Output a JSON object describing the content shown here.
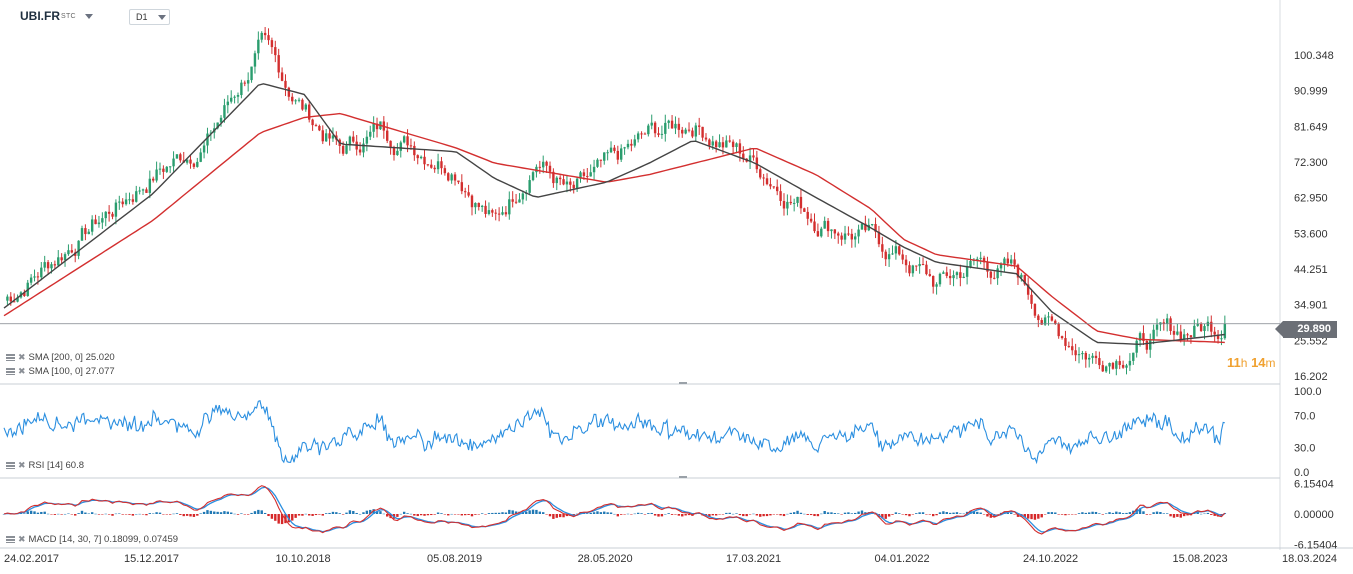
{
  "header": {
    "symbol": "UBI.FR",
    "exchange_tag": "STC",
    "timeframe": "D1"
  },
  "colors": {
    "candle_up": "#2a9d6e",
    "candle_down": "#d32f2f",
    "sma200": "#d32f2f",
    "sma100": "#444444",
    "rsi": "#2b8fe0",
    "macd_line": "#d32f2f",
    "macd_signal": "#2b8fe0",
    "hist_pos": "#1f78b4",
    "hist_neg": "#d62728"
  },
  "indicators": {
    "sma200_label": "SMA [200, 0] 25.020",
    "sma100_label": "SMA [100, 0] 27.077",
    "rsi_label": "RSI [14] 60.8",
    "macd_label": "MACD [14, 30, 7] 0.18099, 0.07459"
  },
  "last_price": "29.890",
  "countdown": {
    "hours": "11",
    "h_unit": "h",
    "minutes": "14",
    "m_unit": "m"
  },
  "chart_data": {
    "type": "candlestick",
    "price_axis_ticks": [
      "100.348",
      "90.999",
      "81.649",
      "72.300",
      "62.950",
      "53.600",
      "44.251",
      "34.901",
      "25.552",
      "16.202"
    ],
    "rsi_axis_ticks": [
      "100.0",
      "70.0",
      "30.0",
      "0.0"
    ],
    "macd_axis_ticks": [
      "6.15404",
      "0.00000",
      "-6.15404"
    ],
    "x_ticks": [
      "24.02.2017",
      "15.12.2017",
      "10.10.2018",
      "05.08.2019",
      "28.05.2020",
      "17.03.2021",
      "04.01.2022",
      "24.10.2022",
      "15.08.2023",
      "18.03.2024"
    ],
    "price_path": [
      [
        "24.02.2017",
        36
      ],
      [
        "15.12.2017",
        69
      ],
      [
        "01.04.2018",
        78
      ],
      [
        "15.07.2018",
        102
      ],
      [
        "10.10.2018",
        86
      ],
      [
        "20.12.2018",
        75
      ],
      [
        "10.03.2019",
        81
      ],
      [
        "05.08.2019",
        72
      ],
      [
        "20.10.2019",
        56
      ],
      [
        "10.01.2020",
        74
      ],
      [
        "20.03.2020",
        63
      ],
      [
        "28.05.2020",
        70
      ],
      [
        "20.08.2020",
        79
      ],
      [
        "15.11.2020",
        83
      ],
      [
        "17.03.2021",
        72
      ],
      [
        "15.07.2021",
        58
      ],
      [
        "01.11.2021",
        52
      ],
      [
        "04.01.2022",
        47
      ],
      [
        "10.03.2022",
        40
      ],
      [
        "01.06.2022",
        46
      ],
      [
        "15.08.2022",
        43
      ],
      [
        "24.10.2022",
        29
      ],
      [
        "20.01.2023",
        21
      ],
      [
        "15.04.2023",
        25
      ],
      [
        "15.08.2023",
        29
      ],
      [
        "30.09.2023",
        29.89
      ]
    ],
    "sma100_path": [
      [
        "24.02.2017",
        34
      ],
      [
        "15.12.2017",
        64
      ],
      [
        "15.07.2018",
        93
      ],
      [
        "10.10.2018",
        90
      ],
      [
        "20.12.2018",
        77
      ],
      [
        "05.08.2019",
        75
      ],
      [
        "20.10.2019",
        68
      ],
      [
        "10.01.2020",
        63
      ],
      [
        "28.05.2020",
        67
      ],
      [
        "20.08.2020",
        72
      ],
      [
        "15.11.2020",
        78
      ],
      [
        "17.03.2021",
        72
      ],
      [
        "15.07.2021",
        63
      ],
      [
        "01.11.2021",
        55
      ],
      [
        "04.01.2022",
        50
      ],
      [
        "10.03.2022",
        46
      ],
      [
        "15.08.2022",
        43
      ],
      [
        "24.10.2022",
        33
      ],
      [
        "20.01.2023",
        25
      ],
      [
        "15.04.2023",
        24.5
      ],
      [
        "30.09.2023",
        27.077
      ]
    ],
    "sma200_path": [
      [
        "24.02.2017",
        32
      ],
      [
        "15.12.2017",
        57
      ],
      [
        "15.07.2018",
        80
      ],
      [
        "10.10.2018",
        84
      ],
      [
        "20.12.2018",
        85
      ],
      [
        "05.08.2019",
        76
      ],
      [
        "20.10.2019",
        72
      ],
      [
        "28.05.2020",
        67
      ],
      [
        "20.08.2020",
        69
      ],
      [
        "17.03.2021",
        76
      ],
      [
        "15.07.2021",
        69
      ],
      [
        "01.11.2021",
        60
      ],
      [
        "04.01.2022",
        52
      ],
      [
        "10.03.2022",
        48
      ],
      [
        "15.08.2022",
        45
      ],
      [
        "24.10.2022",
        37
      ],
      [
        "20.01.2023",
        28
      ],
      [
        "15.04.2023",
        25.8
      ],
      [
        "30.09.2023",
        25.02
      ]
    ],
    "rsi_last": 60.8,
    "macd_last": 0.18099,
    "macd_signal_last": 0.07459
  }
}
